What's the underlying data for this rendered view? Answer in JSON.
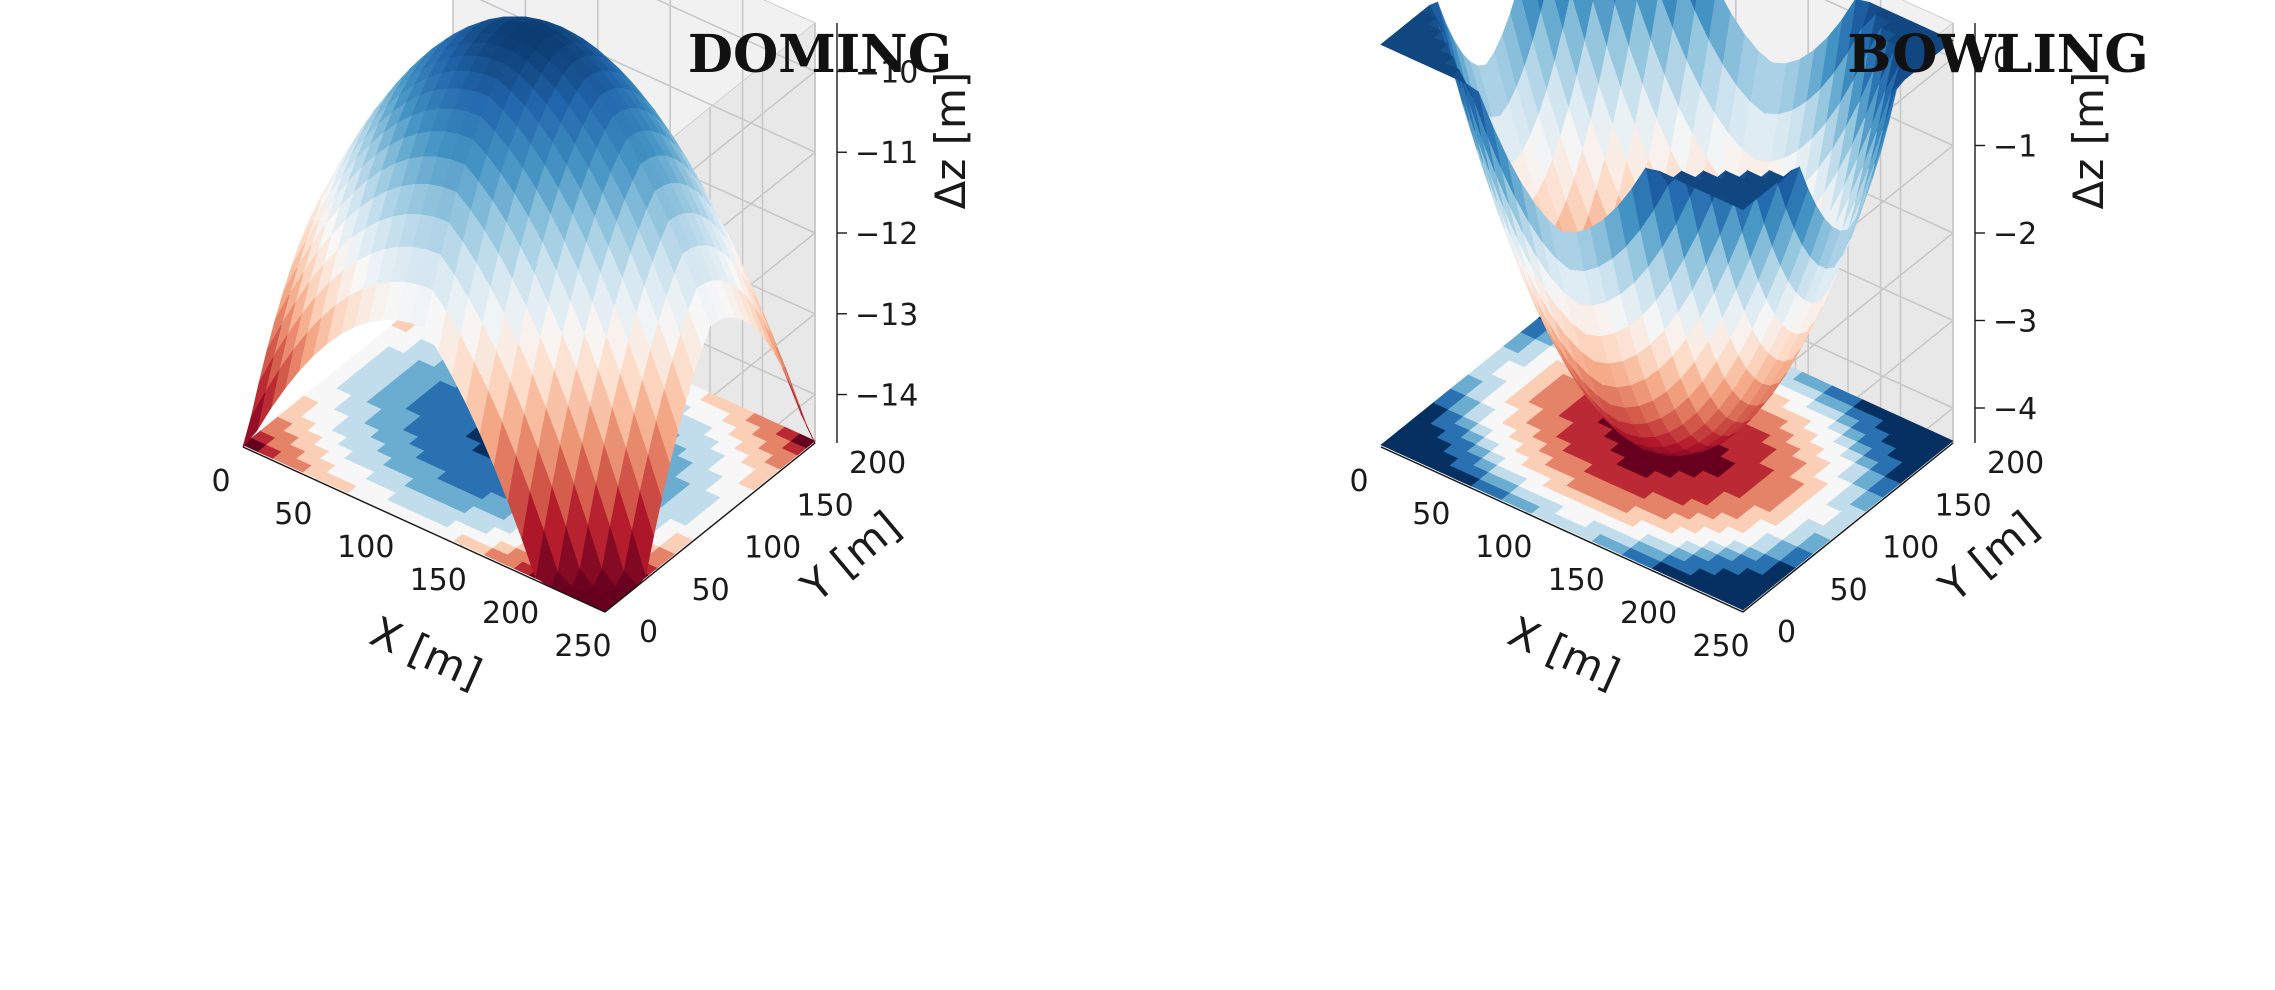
{
  "chart_data": [
    {
      "type": "surface3d",
      "title": "DOMING",
      "shape": "dome",
      "colormap": "RdBu",
      "xlabel": "X [m]",
      "ylabel": "Y [m]",
      "zlabel": "Δz [m]",
      "xlim": [
        0,
        250
      ],
      "ylim": [
        0,
        200
      ],
      "zlim": [
        -14.6,
        -9.4
      ],
      "xticks": [
        0,
        50,
        100,
        150,
        200,
        250
      ],
      "yticks": [
        0,
        50,
        100,
        150,
        200
      ],
      "zticks": [
        -14,
        -13,
        -12,
        -11,
        -10
      ],
      "xtick_labels": [
        "0",
        "50",
        "100",
        "150",
        "200",
        "250"
      ],
      "ytick_labels": [
        "0",
        "50",
        "100",
        "150",
        "200"
      ],
      "ztick_labels": [
        "−14",
        "−13",
        "−12",
        "−11",
        "−10"
      ],
      "z_peak": -9.5,
      "z_min": -14.6,
      "has_floor_contour": true
    },
    {
      "type": "surface3d",
      "title": "BOWLING",
      "shape": "bowl",
      "colormap": "RdBu",
      "xlabel": "X [m]",
      "ylabel": "Y [m]",
      "zlabel": "Δz [m]",
      "xlim": [
        0,
        250
      ],
      "ylim": [
        0,
        200
      ],
      "zlim": [
        -4.4,
        0.4
      ],
      "xticks": [
        0,
        50,
        100,
        150,
        200,
        250
      ],
      "yticks": [
        0,
        50,
        100,
        150,
        200
      ],
      "zticks": [
        -4,
        -3,
        -2,
        -1,
        0
      ],
      "xtick_labels": [
        "0",
        "50",
        "100",
        "150",
        "200",
        "250"
      ],
      "ytick_labels": [
        "0",
        "50",
        "100",
        "150",
        "200"
      ],
      "ztick_labels": [
        "−4",
        "−3",
        "−2",
        "−1",
        "0"
      ],
      "z_peak": 0.2,
      "z_min": -4.4,
      "has_floor_contour": true
    }
  ],
  "colors": {
    "pane": "#f1f1f1",
    "pane_side": "#e8e8e8",
    "grid": "#c8c8c8",
    "axis_line": "#1a1a1a"
  }
}
